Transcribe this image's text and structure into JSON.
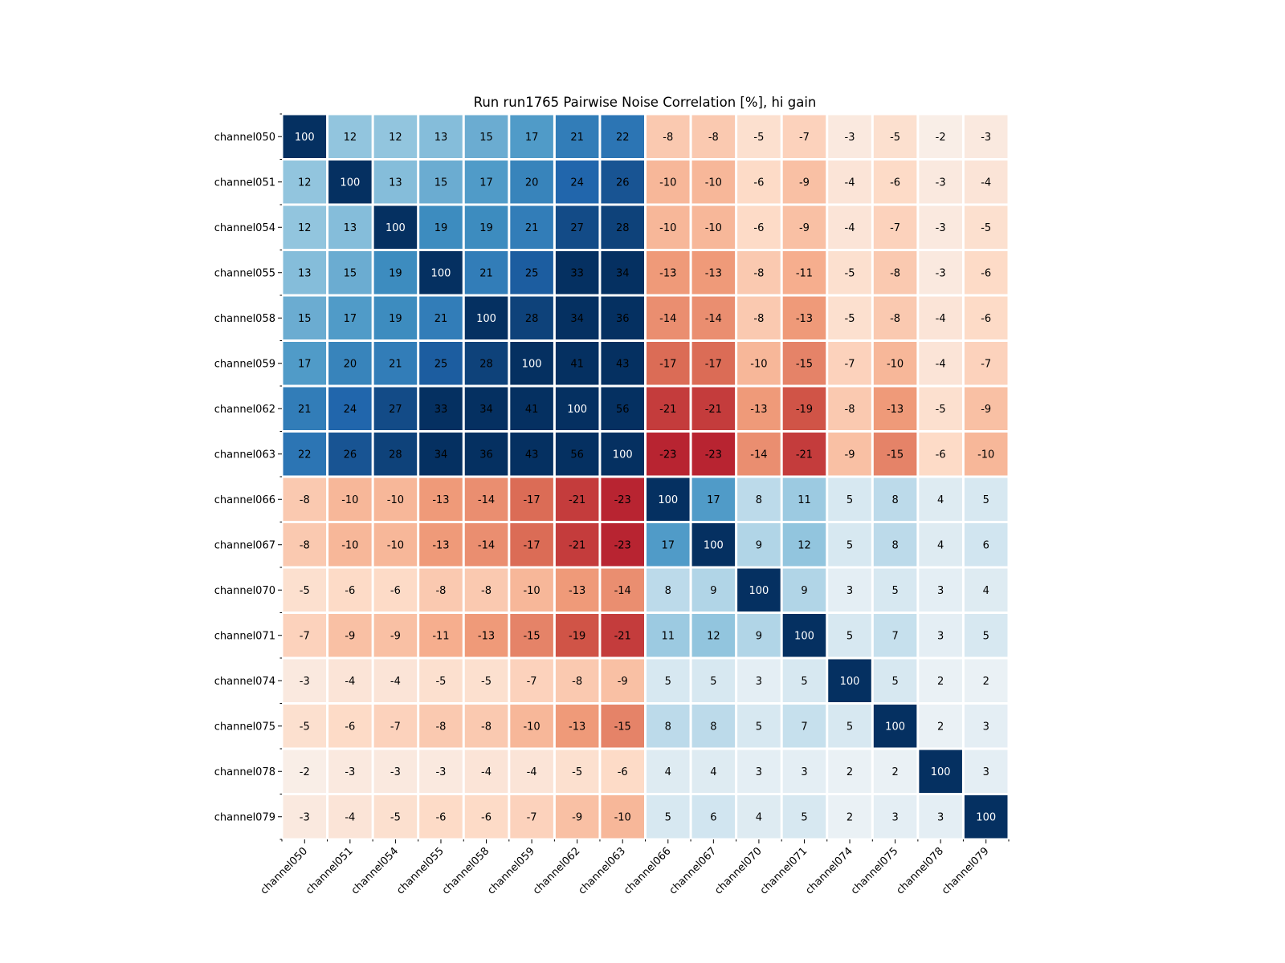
{
  "chart_data": {
    "type": "heatmap",
    "title": "Run run1765 Pairwise Noise Correlation [%], hi gain",
    "xlabel": "",
    "ylabel": "",
    "colormap": "RdBu",
    "color_range": [
      -30,
      30
    ],
    "grid": false,
    "legend": "none",
    "text_color_default": "#000000",
    "text_color_diagonal": "#ffffff",
    "cell_separator_color": "#ffffff",
    "x_categories": [
      "channel050",
      "channel051",
      "channel054",
      "channel055",
      "channel058",
      "channel059",
      "channel062",
      "channel063",
      "channel066",
      "channel067",
      "channel070",
      "channel071",
      "channel074",
      "channel075",
      "channel078",
      "channel079"
    ],
    "y_categories": [
      "channel050",
      "channel051",
      "channel054",
      "channel055",
      "channel058",
      "channel059",
      "channel062",
      "channel063",
      "channel066",
      "channel067",
      "channel070",
      "channel071",
      "channel074",
      "channel075",
      "channel078",
      "channel079"
    ],
    "values": [
      [
        100,
        12,
        12,
        13,
        15,
        17,
        21,
        22,
        -8,
        -8,
        -5,
        -7,
        -3,
        -5,
        -2,
        -3
      ],
      [
        12,
        100,
        13,
        15,
        17,
        20,
        24,
        26,
        -10,
        -10,
        -6,
        -9,
        -4,
        -6,
        -3,
        -4
      ],
      [
        12,
        13,
        100,
        19,
        19,
        21,
        27,
        28,
        -10,
        -10,
        -6,
        -9,
        -4,
        -7,
        -3,
        -5
      ],
      [
        13,
        15,
        19,
        100,
        21,
        25,
        33,
        34,
        -13,
        -13,
        -8,
        -11,
        -5,
        -8,
        -3,
        -6
      ],
      [
        15,
        17,
        19,
        21,
        100,
        28,
        34,
        36,
        -14,
        -14,
        -8,
        -13,
        -5,
        -8,
        -4,
        -6
      ],
      [
        17,
        20,
        21,
        25,
        28,
        100,
        41,
        43,
        -17,
        -17,
        -10,
        -15,
        -7,
        -10,
        -4,
        -7
      ],
      [
        21,
        24,
        27,
        33,
        34,
        41,
        100,
        56,
        -21,
        -21,
        -13,
        -19,
        -8,
        -13,
        -5,
        -9
      ],
      [
        22,
        26,
        28,
        34,
        36,
        43,
        56,
        100,
        -23,
        -23,
        -14,
        -21,
        -9,
        -15,
        -6,
        -10
      ],
      [
        -8,
        -10,
        -10,
        -13,
        -14,
        -17,
        -21,
        -23,
        100,
        17,
        8,
        11,
        5,
        8,
        4,
        5
      ],
      [
        -8,
        -10,
        -10,
        -13,
        -14,
        -17,
        -21,
        -23,
        17,
        100,
        9,
        12,
        5,
        8,
        4,
        6
      ],
      [
        -5,
        -6,
        -6,
        -8,
        -8,
        -10,
        -13,
        -14,
        8,
        9,
        100,
        9,
        3,
        5,
        3,
        4
      ],
      [
        -7,
        -9,
        -9,
        -11,
        -13,
        -15,
        -19,
        -21,
        11,
        12,
        9,
        100,
        5,
        7,
        3,
        5
      ],
      [
        -3,
        -4,
        -4,
        -5,
        -5,
        -7,
        -8,
        -9,
        5,
        5,
        3,
        5,
        100,
        5,
        2,
        2
      ],
      [
        -5,
        -6,
        -7,
        -8,
        -8,
        -10,
        -13,
        -15,
        8,
        8,
        5,
        7,
        5,
        100,
        2,
        3
      ],
      [
        -2,
        -3,
        -3,
        -3,
        -4,
        -4,
        -5,
        -6,
        4,
        4,
        3,
        3,
        2,
        2,
        100,
        3
      ],
      [
        -3,
        -4,
        -5,
        -6,
        -6,
        -7,
        -9,
        -10,
        5,
        6,
        4,
        5,
        2,
        3,
        3,
        100
      ]
    ]
  }
}
